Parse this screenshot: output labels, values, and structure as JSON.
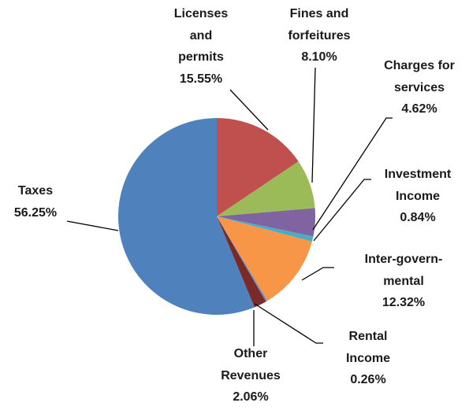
{
  "chart_data": {
    "type": "pie",
    "categories": [
      "Licenses and permits",
      "Fines and forfeitures",
      "Charges for services",
      "Investment Income",
      "Inter-govern-mental",
      "Rental Income",
      "Other Revenues",
      "Taxes"
    ],
    "values": [
      15.55,
      8.1,
      4.62,
      0.84,
      12.32,
      0.26,
      2.06,
      56.25
    ],
    "value_labels": [
      "15.55%",
      "8.10%",
      "4.62%",
      "0.84%",
      "12.32%",
      "0.26%",
      "2.06%",
      "56.25%"
    ],
    "colors": [
      "#c0504d",
      "#9bbb59",
      "#8064a2",
      "#4bacc6",
      "#f79646",
      "#5b8fd0",
      "#7a2a28",
      "#4f81bd"
    ]
  }
}
